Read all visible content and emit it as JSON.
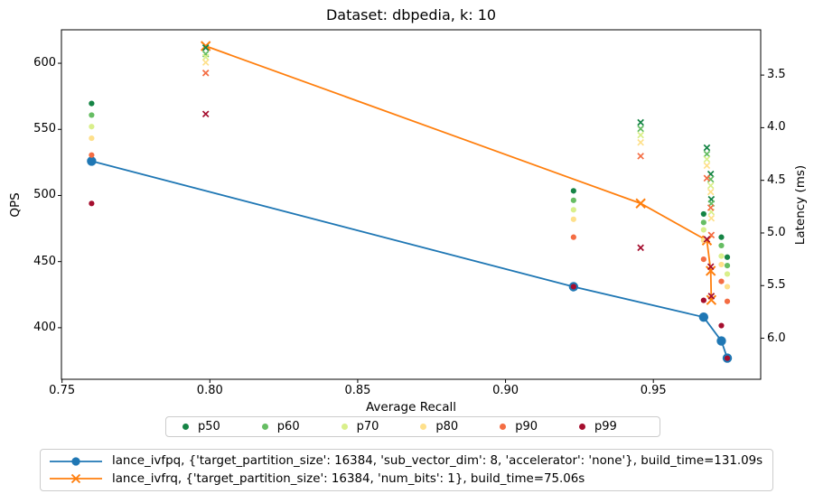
{
  "title": "Dataset: dbpedia, k: 10",
  "chart_data": {
    "type": "line+scatter",
    "title": "Dataset: dbpedia, k: 10",
    "xlabel": "Average Recall",
    "ylabel_left": "QPS",
    "ylabel_right": "Latency (ms)",
    "xlim": [
      0.7498,
      0.9863
    ],
    "qps_lim": [
      361.0,
      625.3
    ],
    "latency_lim_top_to_bottom": [
      3.07,
      6.39
    ],
    "x_ticks": {
      "values": [
        0.75,
        0.8,
        0.85,
        0.9,
        0.95
      ],
      "labels": [
        "0.75",
        "0.80",
        "0.85",
        "0.90",
        "0.95"
      ]
    },
    "y_left_ticks": {
      "values": [
        400,
        450,
        500,
        550,
        600
      ],
      "labels": [
        "400",
        "450",
        "500",
        "550",
        "600"
      ]
    },
    "y_right_ticks": {
      "values": [
        3.5,
        4.0,
        4.5,
        5.0,
        5.5,
        6.0
      ],
      "labels": [
        "3.5",
        "4.0",
        "4.5",
        "5.0",
        "5.5",
        "6.0"
      ]
    },
    "grid": false,
    "series": [
      {
        "name": "lance_ivfpq",
        "color": "#1f77b4",
        "marker": "circle",
        "legend_label": "lance_ivfpq, {'target_partition_size': 16384, 'sub_vector_dim': 8, 'accelerator': 'none'}, build_time=131.09s",
        "points_recall_qps": [
          [
            0.76,
            526
          ],
          [
            0.923,
            431
          ],
          [
            0.967,
            408
          ],
          [
            0.973,
            390
          ],
          [
            0.975,
            377
          ]
        ]
      },
      {
        "name": "lance_ivfrq",
        "color": "#ff7f0e",
        "marker": "x",
        "legend_label": "lance_ivfrq, {'target_partition_size': 16384, 'num_bits': 1}, build_time=75.06s",
        "points_recall_qps": [
          [
            0.7986,
            613
          ],
          [
            0.9457,
            494
          ],
          [
            0.9681,
            466
          ],
          [
            0.9694,
            443
          ],
          [
            0.9696,
            421
          ]
        ]
      }
    ],
    "percentiles": [
      {
        "label": "p50",
        "color": "#158445",
        "ivfpq_recall_latency": [
          [
            0.76,
            3.77
          ],
          [
            0.923,
            4.6
          ],
          [
            0.967,
            4.82
          ],
          [
            0.973,
            5.04
          ],
          [
            0.975,
            5.23
          ]
        ],
        "ivfrq_recall_latency": [
          [
            0.7986,
            3.24
          ],
          [
            0.9457,
            3.95
          ],
          [
            0.9681,
            4.19
          ],
          [
            0.9694,
            4.44
          ],
          [
            0.9696,
            4.68
          ]
        ]
      },
      {
        "label": "p60",
        "color": "#66bd63",
        "ivfpq_recall_latency": [
          [
            0.76,
            3.88
          ],
          [
            0.923,
            4.69
          ],
          [
            0.967,
            4.9
          ],
          [
            0.973,
            5.12
          ],
          [
            0.975,
            5.31
          ]
        ],
        "ivfrq_recall_latency": [
          [
            0.7986,
            3.3
          ],
          [
            0.9457,
            4.01
          ],
          [
            0.9681,
            4.25
          ],
          [
            0.9694,
            4.49
          ],
          [
            0.9696,
            4.72
          ]
        ]
      },
      {
        "label": "p70",
        "color": "#d9ef8b",
        "ivfpq_recall_latency": [
          [
            0.76,
            3.99
          ],
          [
            0.923,
            4.78
          ],
          [
            0.967,
            4.97
          ],
          [
            0.973,
            5.22
          ],
          [
            0.975,
            5.39
          ]
        ],
        "ivfrq_recall_latency": [
          [
            0.7986,
            3.33
          ],
          [
            0.9457,
            4.07
          ],
          [
            0.9681,
            4.3
          ],
          [
            0.9694,
            4.55
          ],
          [
            0.9696,
            4.8
          ]
        ]
      },
      {
        "label": "p80",
        "color": "#fee08b",
        "ivfpq_recall_latency": [
          [
            0.76,
            4.1
          ],
          [
            0.923,
            4.87
          ],
          [
            0.967,
            5.07
          ],
          [
            0.973,
            5.3
          ],
          [
            0.975,
            5.51
          ]
        ],
        "ivfrq_recall_latency": [
          [
            0.7986,
            3.38
          ],
          [
            0.9457,
            4.14
          ],
          [
            0.9681,
            4.36
          ],
          [
            0.9694,
            4.61
          ],
          [
            0.9696,
            4.86
          ]
        ]
      },
      {
        "label": "p90",
        "color": "#f46d43",
        "ivfpq_recall_latency": [
          [
            0.76,
            4.26
          ],
          [
            0.923,
            5.04
          ],
          [
            0.967,
            5.25
          ],
          [
            0.973,
            5.46
          ],
          [
            0.975,
            5.65
          ]
        ],
        "ivfrq_recall_latency": [
          [
            0.7986,
            3.48
          ],
          [
            0.9457,
            4.27
          ],
          [
            0.9681,
            4.48
          ],
          [
            0.9694,
            4.76
          ],
          [
            0.9696,
            5.02
          ]
        ]
      },
      {
        "label": "p99",
        "color": "#a50e2e",
        "ivfpq_recall_latency": [
          [
            0.76,
            4.72
          ],
          [
            0.923,
            5.51
          ],
          [
            0.967,
            5.64
          ],
          [
            0.973,
            5.88
          ],
          [
            0.975,
            6.19
          ]
        ],
        "ivfrq_recall_latency": [
          [
            0.7986,
            3.87
          ],
          [
            0.9457,
            5.14
          ],
          [
            0.9681,
            5.06
          ],
          [
            0.9694,
            5.32
          ],
          [
            0.9696,
            5.6
          ]
        ]
      }
    ]
  }
}
